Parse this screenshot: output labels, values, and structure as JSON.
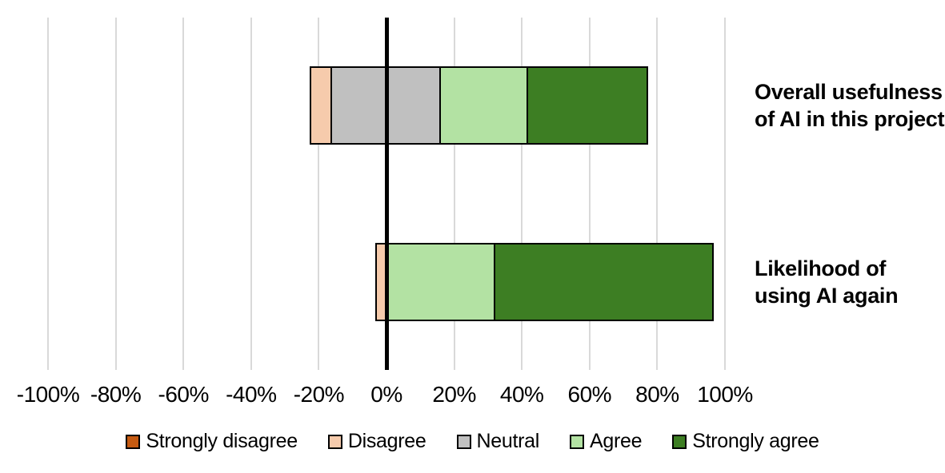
{
  "chart_data": {
    "type": "bar",
    "subtype": "diverging-stacked-likert",
    "title": "",
    "xlabel": "",
    "ylabel": "",
    "grid": true,
    "legend_position": "bottom",
    "xlim": [
      -100,
      100
    ],
    "x_ticks": [
      "-100%",
      "-80%",
      "-60%",
      "-40%",
      "-20%",
      "0%",
      "20%",
      "40%",
      "60%",
      "80%",
      "100%"
    ],
    "x_tick_values": [
      -100,
      -80,
      -60,
      -40,
      -20,
      0,
      20,
      40,
      60,
      80,
      100
    ],
    "categories": [
      "Overall usefulness of AI in this project",
      "Likelihood of using AI again"
    ],
    "category_label_lines": [
      [
        "Overall usefulness",
        "of AI in this project"
      ],
      [
        "Likelihood of",
        "using AI again"
      ]
    ],
    "neutral_centered_on_zero": true,
    "series": [
      {
        "name": "Strongly disagree",
        "color": "#C55A11",
        "values": [
          0,
          0
        ]
      },
      {
        "name": "Disagree",
        "color": "#F6CBAC",
        "values": [
          6.45,
          3.23
        ]
      },
      {
        "name": "Neutral",
        "color": "#C0C0C0",
        "values": [
          32.26,
          0
        ]
      },
      {
        "name": "Agree",
        "color": "#B3E2A3",
        "values": [
          25.81,
          32.26
        ]
      },
      {
        "name": "Strongly agree",
        "color": "#3D7E23",
        "values": [
          35.48,
          64.52
        ]
      }
    ],
    "bar_extents_pct": [
      {
        "left": -22.58,
        "right": 77.42
      },
      {
        "left": -3.23,
        "right": 96.77
      }
    ],
    "colors": {
      "gridline": "#D9D9D9",
      "zero_axis": "#000000",
      "segment_border": "#000000",
      "text": "#000000",
      "background": "#FFFFFF"
    }
  }
}
